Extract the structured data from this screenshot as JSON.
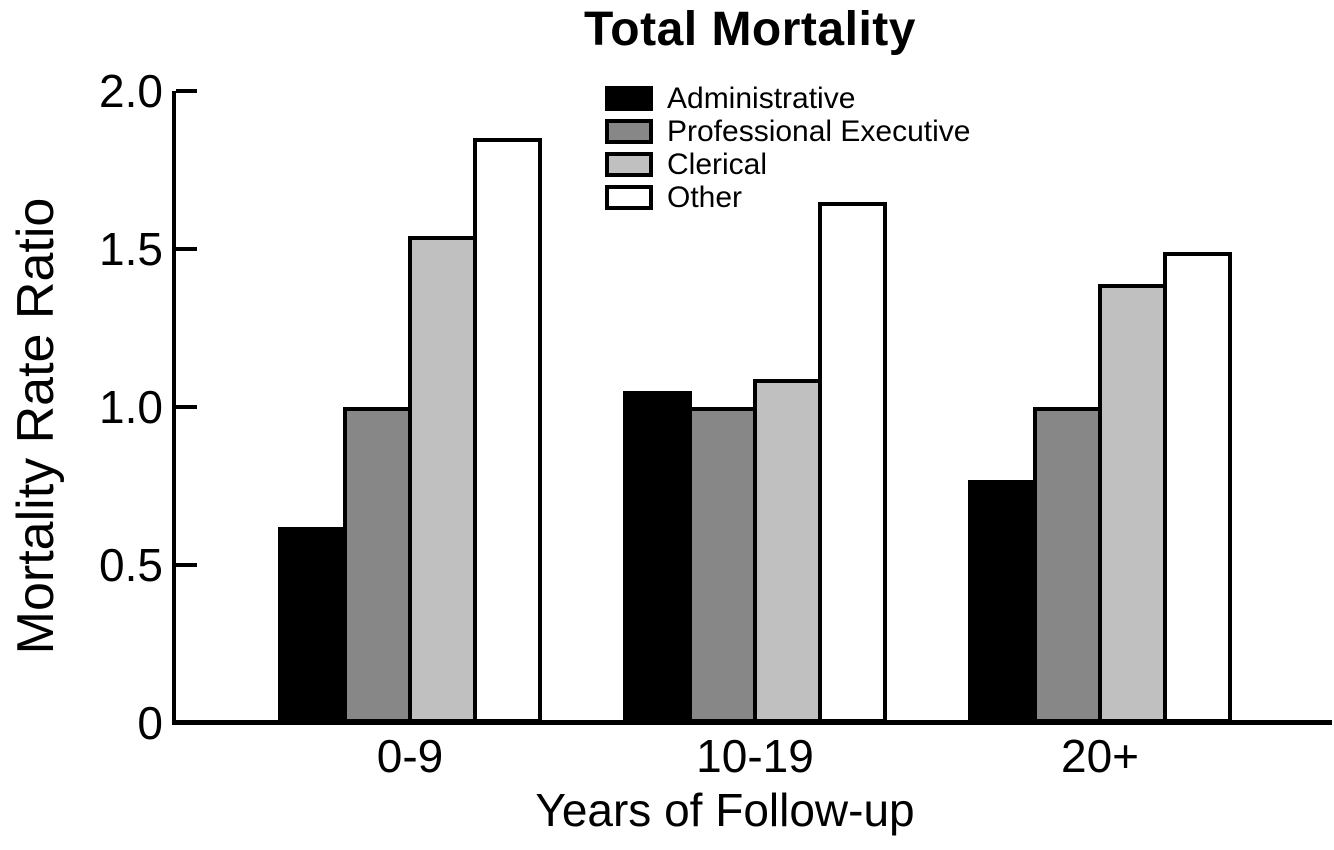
{
  "chart_data": {
    "type": "bar",
    "title": "Total Mortality",
    "xlabel": "Years of Follow-up",
    "ylabel": "Mortality Rate Ratio",
    "categories": [
      "0-9",
      "10-19",
      "20+"
    ],
    "series": [
      {
        "name": "Administrative",
        "color": "#000000",
        "values": [
          0.62,
          1.05,
          0.77
        ]
      },
      {
        "name": "Professional Executive",
        "color": "#878787",
        "values": [
          1.0,
          1.0,
          1.0
        ]
      },
      {
        "name": "Clerical",
        "color": "#c0c0c0",
        "values": [
          1.54,
          1.09,
          1.39
        ]
      },
      {
        "name": "Other",
        "color": "#ffffff",
        "values": [
          1.85,
          1.65,
          1.49
        ]
      }
    ],
    "ylim": [
      0,
      2.0
    ],
    "yticks": [
      0,
      0.5,
      1.0,
      1.5,
      2.0
    ],
    "ytick_labels": [
      "0",
      "0.5",
      "1.0",
      "1.5",
      "2.0"
    ],
    "grid": false,
    "legend_position": "upper-center",
    "axis_color": "#000000"
  }
}
